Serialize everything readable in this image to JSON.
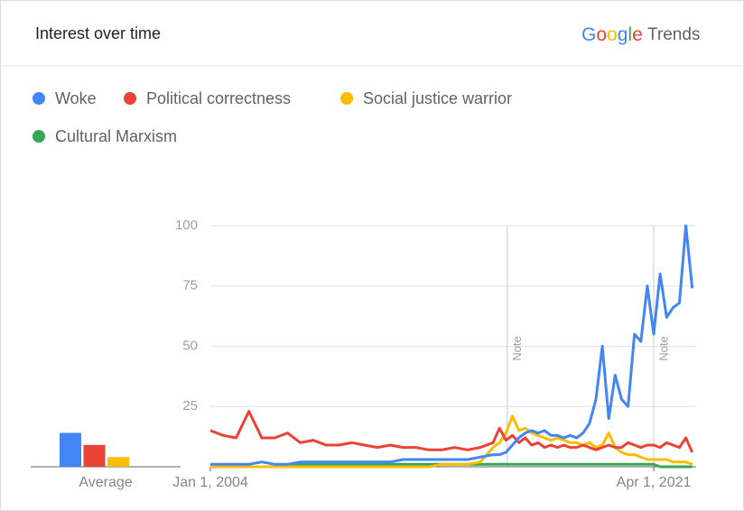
{
  "header": {
    "title": "Interest over time",
    "brand": "Google",
    "product": "Trends"
  },
  "chart_data": {
    "type": "line",
    "x": [
      2004,
      2004.5,
      2005,
      2005.5,
      2006,
      2006.5,
      2007,
      2007.5,
      2008,
      2008.5,
      2009,
      2009.5,
      2010,
      2010.5,
      2011,
      2011.5,
      2012,
      2012.5,
      2013,
      2013.5,
      2014,
      2014.5,
      2015,
      2015.25,
      2015.5,
      2015.75,
      2016,
      2016.25,
      2016.5,
      2016.75,
      2017,
      2017.25,
      2017.5,
      2017.75,
      2018,
      2018.25,
      2018.5,
      2018.75,
      2019,
      2019.25,
      2019.5,
      2019.75,
      2020,
      2020.25,
      2020.5,
      2020.75,
      2021,
      2021.25,
      2021.5,
      2021.75,
      2022,
      2022.25,
      2022.5,
      2022.75
    ],
    "series": [
      {
        "name": "Woke",
        "color": "#4285f4",
        "values": [
          1,
          1,
          1,
          1,
          2,
          1,
          1,
          2,
          2,
          2,
          2,
          2,
          2,
          2,
          2,
          3,
          3,
          3,
          3,
          3,
          3,
          4,
          5,
          5,
          6,
          9,
          12,
          14,
          15,
          14,
          15,
          13,
          13,
          12,
          13,
          12,
          14,
          18,
          28,
          50,
          20,
          38,
          28,
          25,
          55,
          52,
          75,
          55,
          80,
          62,
          66,
          68,
          100,
          74
        ]
      },
      {
        "name": "Political correctness",
        "color": "#ea4335",
        "values": [
          15,
          13,
          12,
          23,
          12,
          12,
          14,
          10,
          11,
          9,
          9,
          10,
          9,
          8,
          9,
          8,
          8,
          7,
          7,
          8,
          7,
          8,
          10,
          16,
          11,
          13,
          10,
          12,
          9,
          10,
          8,
          9,
          8,
          9,
          8,
          8,
          9,
          8,
          7,
          8,
          9,
          8,
          8,
          10,
          9,
          8,
          9,
          9,
          8,
          10,
          9,
          8,
          12,
          6
        ]
      },
      {
        "name": "Social justice warrior",
        "color": "#fbbc04",
        "values": [
          0,
          0,
          0,
          0,
          0,
          0,
          0,
          0,
          0,
          0,
          0,
          0,
          0,
          0,
          0,
          0,
          0,
          0,
          1,
          1,
          1,
          2,
          8,
          10,
          14,
          21,
          15,
          16,
          14,
          13,
          12,
          11,
          12,
          11,
          10,
          10,
          9,
          10,
          8,
          9,
          14,
          8,
          6,
          5,
          5,
          4,
          3,
          3,
          3,
          3,
          2,
          2,
          2,
          1
        ]
      },
      {
        "name": "Cultural Marxism",
        "color": "#34a853",
        "values": [
          0,
          0,
          0,
          0,
          0,
          0,
          1,
          1,
          1,
          1,
          1,
          1,
          1,
          1,
          1,
          1,
          1,
          1,
          1,
          1,
          1,
          1,
          1,
          1,
          1,
          1,
          1,
          1,
          1,
          1,
          1,
          1,
          1,
          1,
          1,
          1,
          1,
          1,
          1,
          1,
          1,
          1,
          1,
          1,
          1,
          1,
          1,
          1,
          0,
          0,
          0,
          0,
          0,
          0
        ]
      }
    ],
    "xlim": [
      2004,
      2022.9
    ],
    "xticks": [
      {
        "value": 2004,
        "label": "Jan 1, 2004"
      },
      {
        "value": 2021.25,
        "label": "Apr 1, 2021"
      }
    ],
    "ylim": [
      0,
      100
    ],
    "yticks": [
      25,
      50,
      75,
      100
    ],
    "grid": true,
    "annotations": [
      {
        "x": 2015.55,
        "label": "Note"
      },
      {
        "x": 2021.25,
        "label": "Note"
      }
    ],
    "average": {
      "label": "Average",
      "values": [
        14,
        9,
        4,
        0
      ]
    }
  }
}
